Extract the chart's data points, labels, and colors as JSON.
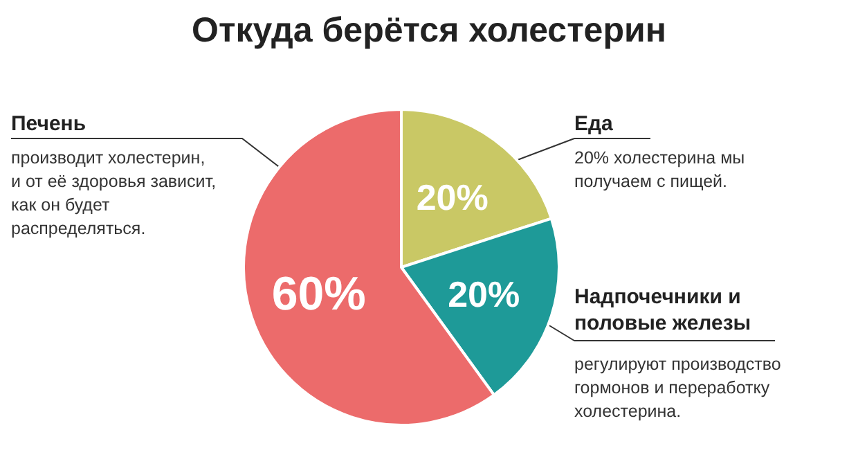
{
  "chart_data": {
    "type": "pie",
    "title": "Откуда берётся холестерин",
    "categories": [
      "Еда",
      "Надпочечники и половые железы",
      "Печень"
    ],
    "values": [
      20,
      20,
      60
    ],
    "colors": [
      "#c9c865",
      "#1e9a98",
      "#ec6b6b"
    ],
    "value_labels": [
      "20%",
      "20%",
      "60%"
    ],
    "annotations": [
      "20% холестерина мы получаем с пищей.",
      "регулируют производство гормонов и переработку холестерина.",
      "производит холестерин, и от её здоровья зависит, как он будет распределяться."
    ]
  }
}
